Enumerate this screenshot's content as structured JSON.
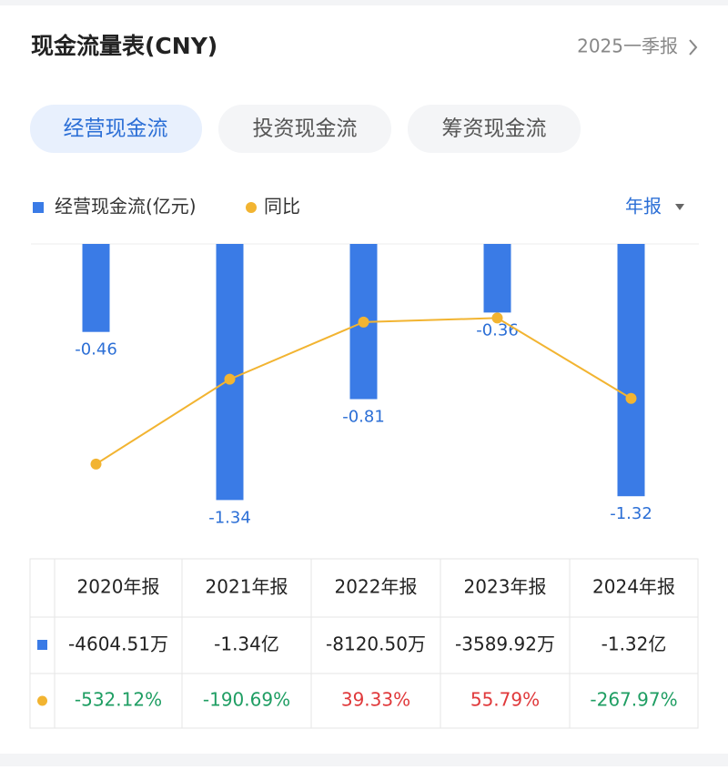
{
  "header": {
    "title": "现金流量表(CNY)",
    "period": "2025一季报"
  },
  "tabs": [
    "经营现金流",
    "投资现金流",
    "筹资现金流"
  ],
  "period_selector": "年报",
  "chart_data": {
    "type": "bar_line",
    "categories": [
      "2020年报",
      "2021年报",
      "2022年报",
      "2023年报",
      "2024年报"
    ],
    "series": [
      {
        "name": "经营现金流(亿元)",
        "type": "bar",
        "color": "#3a7be6",
        "values": [
          -0.460451,
          -1.34,
          -0.81205,
          -0.358992,
          -1.32
        ],
        "value_labels": [
          "-0.46",
          "-1.34",
          "-0.81",
          "-0.36",
          "-1.32"
        ],
        "table_labels": [
          "-4604.51万",
          "-1.34亿",
          "-8120.50万",
          "-3589.92万",
          "-1.32亿"
        ]
      },
      {
        "name": "同比",
        "type": "line",
        "axis": "y2",
        "color": "#f2b431",
        "values": [
          -532.12,
          -190.69,
          39.33,
          55.79,
          -267.97
        ],
        "value_labels": [
          "-532.12%",
          "-190.69%",
          "39.33%",
          "55.79%",
          "-267.97%"
        ]
      }
    ],
    "ylim": [
      -1.6,
      0
    ],
    "y2lim": [
      -877,
      354
    ],
    "positive_color": "#e0393b",
    "negative_color": "#1f9e63"
  }
}
